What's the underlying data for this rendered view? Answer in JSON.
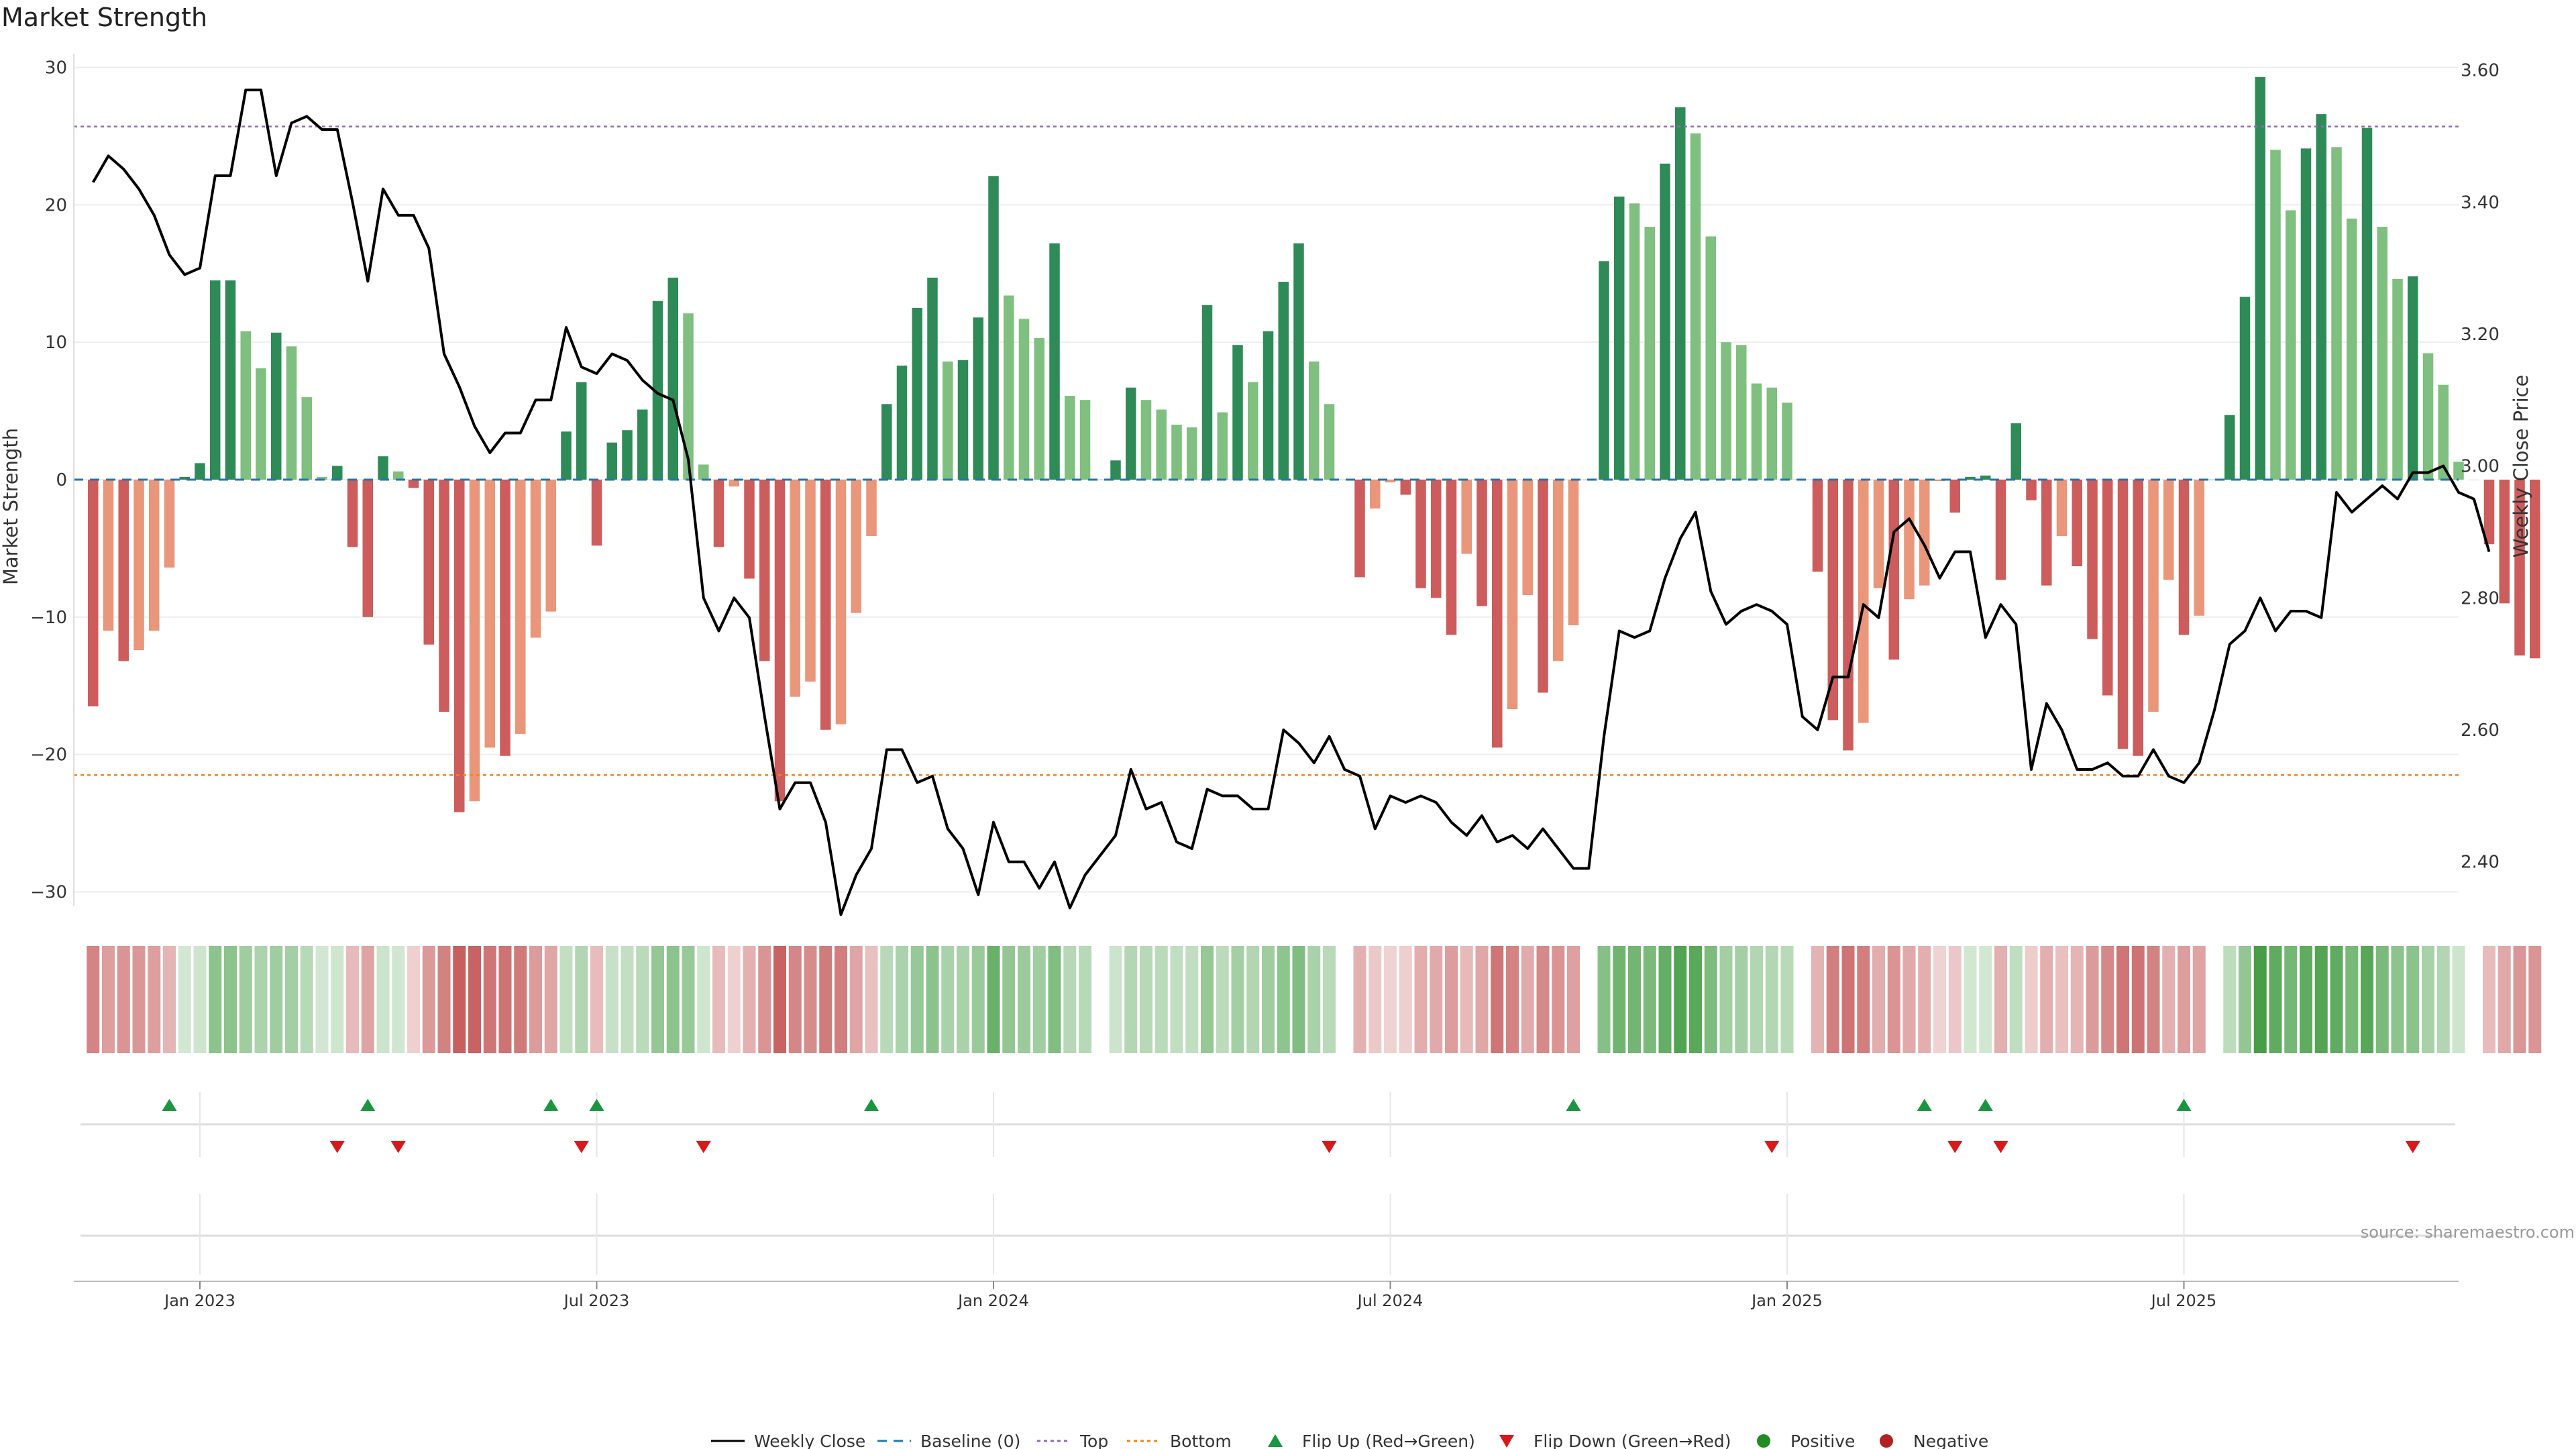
{
  "chart_data": {
    "type": "bar",
    "title": "Market Strength",
    "source": "source: sharemaestro.com",
    "ylabel_left": "Market Strength",
    "ylabel_right": "Weekly Close Price",
    "left_axis": {
      "ylim": [
        -31,
        31
      ],
      "ticks": [
        30,
        20,
        10,
        0,
        -10,
        -20,
        -30
      ],
      "tick_labels": [
        "30",
        "20",
        "10",
        "0",
        "−10",
        "−20",
        "−30"
      ]
    },
    "right_axis": {
      "ylim": [
        2.3336,
        3.625
      ],
      "ticks": [
        3.6,
        3.4,
        3.2,
        3.0,
        2.8,
        2.6,
        2.4
      ],
      "tick_labels": [
        "3.60",
        "3.40",
        "3.20",
        "3.00",
        "2.80",
        "2.60",
        "2.40"
      ]
    },
    "x_axis": {
      "start_week": -7.2,
      "end_week": 148.8,
      "tick_weeks": [
        0,
        26,
        52,
        78,
        104,
        130
      ],
      "tick_labels": [
        "Jan 2023",
        "Jul 2023",
        "Jan 2024",
        "Jul 2024",
        "Jan 2025",
        "Jul 2025"
      ]
    },
    "reference_lines": {
      "top": 25.7,
      "bottom": -21.5,
      "baseline": 0
    },
    "colors": {
      "strong_green": "#2e8b57",
      "light_green": "#7fbf7f",
      "strong_red": "#cd5c5c",
      "light_red": "#e9967a",
      "close_line": "#000000",
      "baseline": "#1f77b4",
      "top_line": "#9467bd",
      "bottom_line": "#ff7f0e",
      "flip_up": "#1a9641",
      "flip_down": "#d7191c",
      "positive": "#228b22",
      "negative": "#b22222"
    },
    "series": [
      {
        "name": "Market Strength",
        "values": [
          -16.5,
          -11,
          -13.2,
          -12.4,
          -11,
          -6.4,
          0.2,
          1.2,
          14.5,
          14.5,
          10.8,
          8.1,
          10.7,
          9.7,
          6,
          0.2,
          1,
          -4.9,
          -10,
          1.7,
          0.6,
          -0.6,
          -12,
          -16.9,
          -24.2,
          -23.4,
          -19.5,
          -20.1,
          -18.5,
          -11.5,
          -9.6,
          3.5,
          7.1,
          -4.8,
          2.7,
          3.6,
          5.1,
          13,
          14.7,
          12.1,
          1.1,
          -4.9,
          -0.5,
          -7.2,
          -13.2,
          -23.4,
          -15.8,
          -14.7,
          -18.2,
          -17.8,
          -9.7,
          -4.1,
          5.5,
          8.3,
          12.5,
          14.7,
          8.6,
          8.7,
          11.8,
          22.1,
          13.4,
          11.7,
          10.3,
          17.2,
          6.1,
          5.8,
          0,
          1.4,
          6.7,
          5.8,
          5.1,
          4,
          3.8,
          12.7,
          4.9,
          9.8,
          7.1,
          10.8,
          14.4,
          17.2,
          8.6,
          5.5,
          0,
          -7.1,
          -2.1,
          -0.2,
          -1.1,
          -7.9,
          -8.6,
          -11.3,
          -5.4,
          -9.2,
          -19.5,
          -16.7,
          -8.4,
          -15.5,
          -13.2,
          -10.6,
          0,
          15.9,
          20.6,
          20.1,
          18.4,
          23,
          27.1,
          25.2,
          17.7,
          10,
          9.8,
          7,
          6.7,
          5.6,
          0,
          -6.7,
          -17.5,
          -19.7,
          -17.7,
          -7.9,
          -13.1,
          -8.7,
          -7.7,
          -0.1,
          -2.4,
          0.2,
          0.3,
          -7.3,
          4.1,
          -1.5,
          -7.7,
          -4.1,
          -6.3,
          -11.6,
          -15.7,
          -19.6,
          -20.1,
          -16.9,
          -7.3,
          -11.3,
          -9.9,
          0,
          4.7,
          13.3,
          29.3,
          24,
          19.6,
          24.1,
          26.6,
          24.2,
          19,
          25.6,
          18.4,
          14.6,
          14.8,
          9.2,
          6.9,
          1.3,
          0,
          -4.7,
          -9,
          -12.8,
          -13
        ]
      },
      {
        "name": "Weekly Close",
        "values": [
          3.43,
          3.47,
          3.45,
          3.42,
          3.38,
          3.32,
          3.29,
          3.3,
          3.44,
          3.44,
          3.57,
          3.57,
          3.44,
          3.52,
          3.53,
          3.51,
          3.51,
          3.4,
          3.28,
          3.42,
          3.38,
          3.38,
          3.33,
          3.17,
          3.12,
          3.06,
          3.02,
          3.05,
          3.05,
          3.1,
          3.1,
          3.21,
          3.15,
          3.14,
          3.17,
          3.16,
          3.13,
          3.11,
          3.1,
          3.01,
          2.8,
          2.75,
          2.8,
          2.77,
          2.62,
          2.48,
          2.52,
          2.52,
          2.46,
          2.32,
          2.38,
          2.42,
          2.57,
          2.57,
          2.52,
          2.53,
          2.45,
          2.42,
          2.35,
          2.46,
          2.4,
          2.4,
          2.36,
          2.4,
          2.33,
          2.38,
          2.41,
          2.44,
          2.54,
          2.48,
          2.49,
          2.43,
          2.42,
          2.51,
          2.5,
          2.5,
          2.48,
          2.48,
          2.6,
          2.58,
          2.55,
          2.59,
          2.54,
          2.53,
          2.45,
          2.5,
          2.49,
          2.5,
          2.49,
          2.46,
          2.44,
          2.47,
          2.43,
          2.44,
          2.42,
          2.45,
          2.42,
          2.39,
          2.39,
          2.59,
          2.75,
          2.74,
          2.75,
          2.83,
          2.89,
          2.93,
          2.81,
          2.76,
          2.78,
          2.79,
          2.78,
          2.76,
          2.62,
          2.6,
          2.68,
          2.68,
          2.79,
          2.77,
          2.9,
          2.92,
          2.88,
          2.83,
          2.87,
          2.87,
          2.74,
          2.79,
          2.76,
          2.54,
          2.64,
          2.6,
          2.54,
          2.54,
          2.55,
          2.53,
          2.53,
          2.57,
          2.53,
          2.52,
          2.55,
          2.63,
          2.73,
          2.75,
          2.8,
          2.75,
          2.78,
          2.78,
          2.77,
          2.96,
          2.93,
          2.95,
          2.97,
          2.95,
          2.99,
          2.99,
          3.0,
          2.96,
          2.95,
          2.87
        ]
      }
    ],
    "flip_up_weeks": [
      -2,
      11,
      23,
      26,
      44,
      90,
      113,
      117,
      130
    ],
    "flip_down_weeks": [
      9,
      13,
      25,
      33,
      74,
      103,
      115,
      118,
      145
    ],
    "legend": [
      "Weekly Close",
      "Baseline (0)",
      "Top",
      "Bottom",
      "Flip Up (Red→Green)",
      "Flip Down (Green→Red)",
      "Positive",
      "Negative"
    ],
    "legend_placement": "bottom-center"
  }
}
